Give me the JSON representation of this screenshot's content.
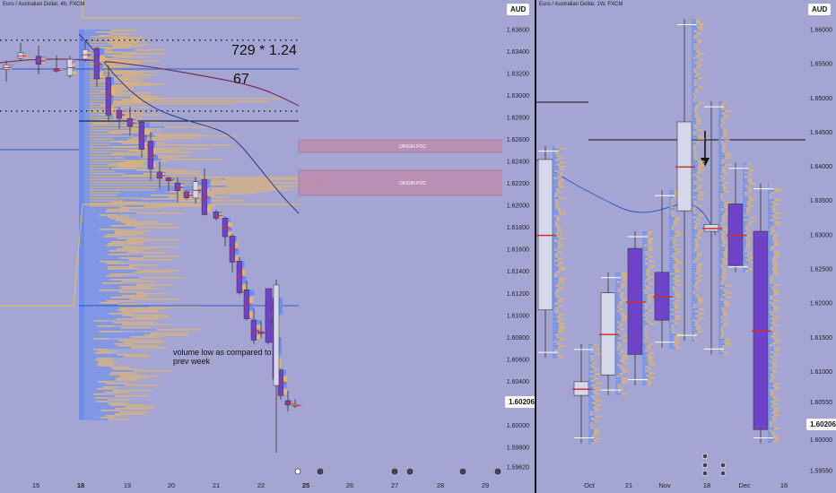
{
  "left_chart": {
    "title": "Euro / Australian Dollar, 4h, FXCM",
    "currency": "AUD",
    "price_tag": "1.60206",
    "annotation_ratio": "729 * 1.24",
    "annotation_count": "67",
    "annotation_volume": "volume low as compared to prev week",
    "zone_labels": [
      "ORIGIN POC",
      "ORIGIN POC"
    ]
  },
  "right_chart": {
    "title": "Euro / Australian Dollar, 1W, FXCM",
    "currency": "AUD",
    "price_tag": "1.60206"
  },
  "colors": {
    "background": "#a4a5d2",
    "bull_candle": "#d5d7ea",
    "bear_candle": "#6f43c9",
    "volume_profile_blue": "#6b8ff0",
    "volume_profile_orange": "#e3b56a",
    "poc_red": "#d03030",
    "ma_line": "#7a3050",
    "zone": "#c08aae"
  },
  "chart_data": [
    {
      "type": "candlestick",
      "title": "Euro / Australian Dollar, 4h, FXCM",
      "y_ticks": [
        1.5962,
        1.598,
        1.6,
        1.602,
        1.604,
        1.606,
        1.608,
        1.61,
        1.612,
        1.614,
        1.616,
        1.618,
        1.62,
        1.622,
        1.624,
        1.626,
        1.628,
        1.63,
        1.632,
        1.634,
        1.636
      ],
      "ylim": [
        1.5955,
        1.6372
      ],
      "x_ticks": [
        "15",
        "18",
        "19",
        "20",
        "21",
        "22",
        "25",
        "26",
        "27",
        "28",
        "29"
      ],
      "last_price": 1.60206,
      "approx_close_path": [
        {
          "label": "15",
          "value": 1.632
        },
        {
          "label": "18",
          "value": 1.6345
        },
        {
          "label": "19",
          "value": 1.6275
        },
        {
          "label": "20",
          "value": 1.6225
        },
        {
          "label": "21",
          "value": 1.619
        },
        {
          "label": "22",
          "value": 1.609
        },
        {
          "label": "25",
          "value": 1.6021
        }
      ]
    },
    {
      "type": "candlestick",
      "title": "Euro / Australian Dollar, 1W, FXCM",
      "y_ticks": [
        1.5955,
        1.6,
        1.6055,
        1.61,
        1.615,
        1.62,
        1.625,
        1.63,
        1.635,
        1.64,
        1.645,
        1.65,
        1.655,
        1.66
      ],
      "ylim": [
        1.594,
        1.6625
      ],
      "x_ticks": [
        "Oct",
        "21",
        "Nov",
        "18",
        "Dec",
        "16"
      ],
      "last_price": 1.60206,
      "weekly_candles": [
        {
          "open": 1.619,
          "high": 1.643,
          "low": 1.612,
          "close": 1.641
        },
        {
          "open": 1.6065,
          "high": 1.614,
          "low": 1.5995,
          "close": 1.6085
        },
        {
          "open": 1.6095,
          "high": 1.6245,
          "low": 1.6065,
          "close": 1.6215
        },
        {
          "open": 1.628,
          "high": 1.6305,
          "low": 1.608,
          "close": 1.6125
        },
        {
          "open": 1.6245,
          "high": 1.6365,
          "low": 1.6135,
          "close": 1.6175
        },
        {
          "open": 1.6335,
          "high": 1.6615,
          "low": 1.6145,
          "close": 1.6465
        },
        {
          "open": 1.6305,
          "high": 1.6495,
          "low": 1.6125,
          "close": 1.6315
        },
        {
          "open": 1.6345,
          "high": 1.6405,
          "low": 1.6245,
          "close": 1.6255
        },
        {
          "open": 1.6305,
          "high": 1.6375,
          "low": 1.5995,
          "close": 1.6015
        }
      ]
    }
  ]
}
